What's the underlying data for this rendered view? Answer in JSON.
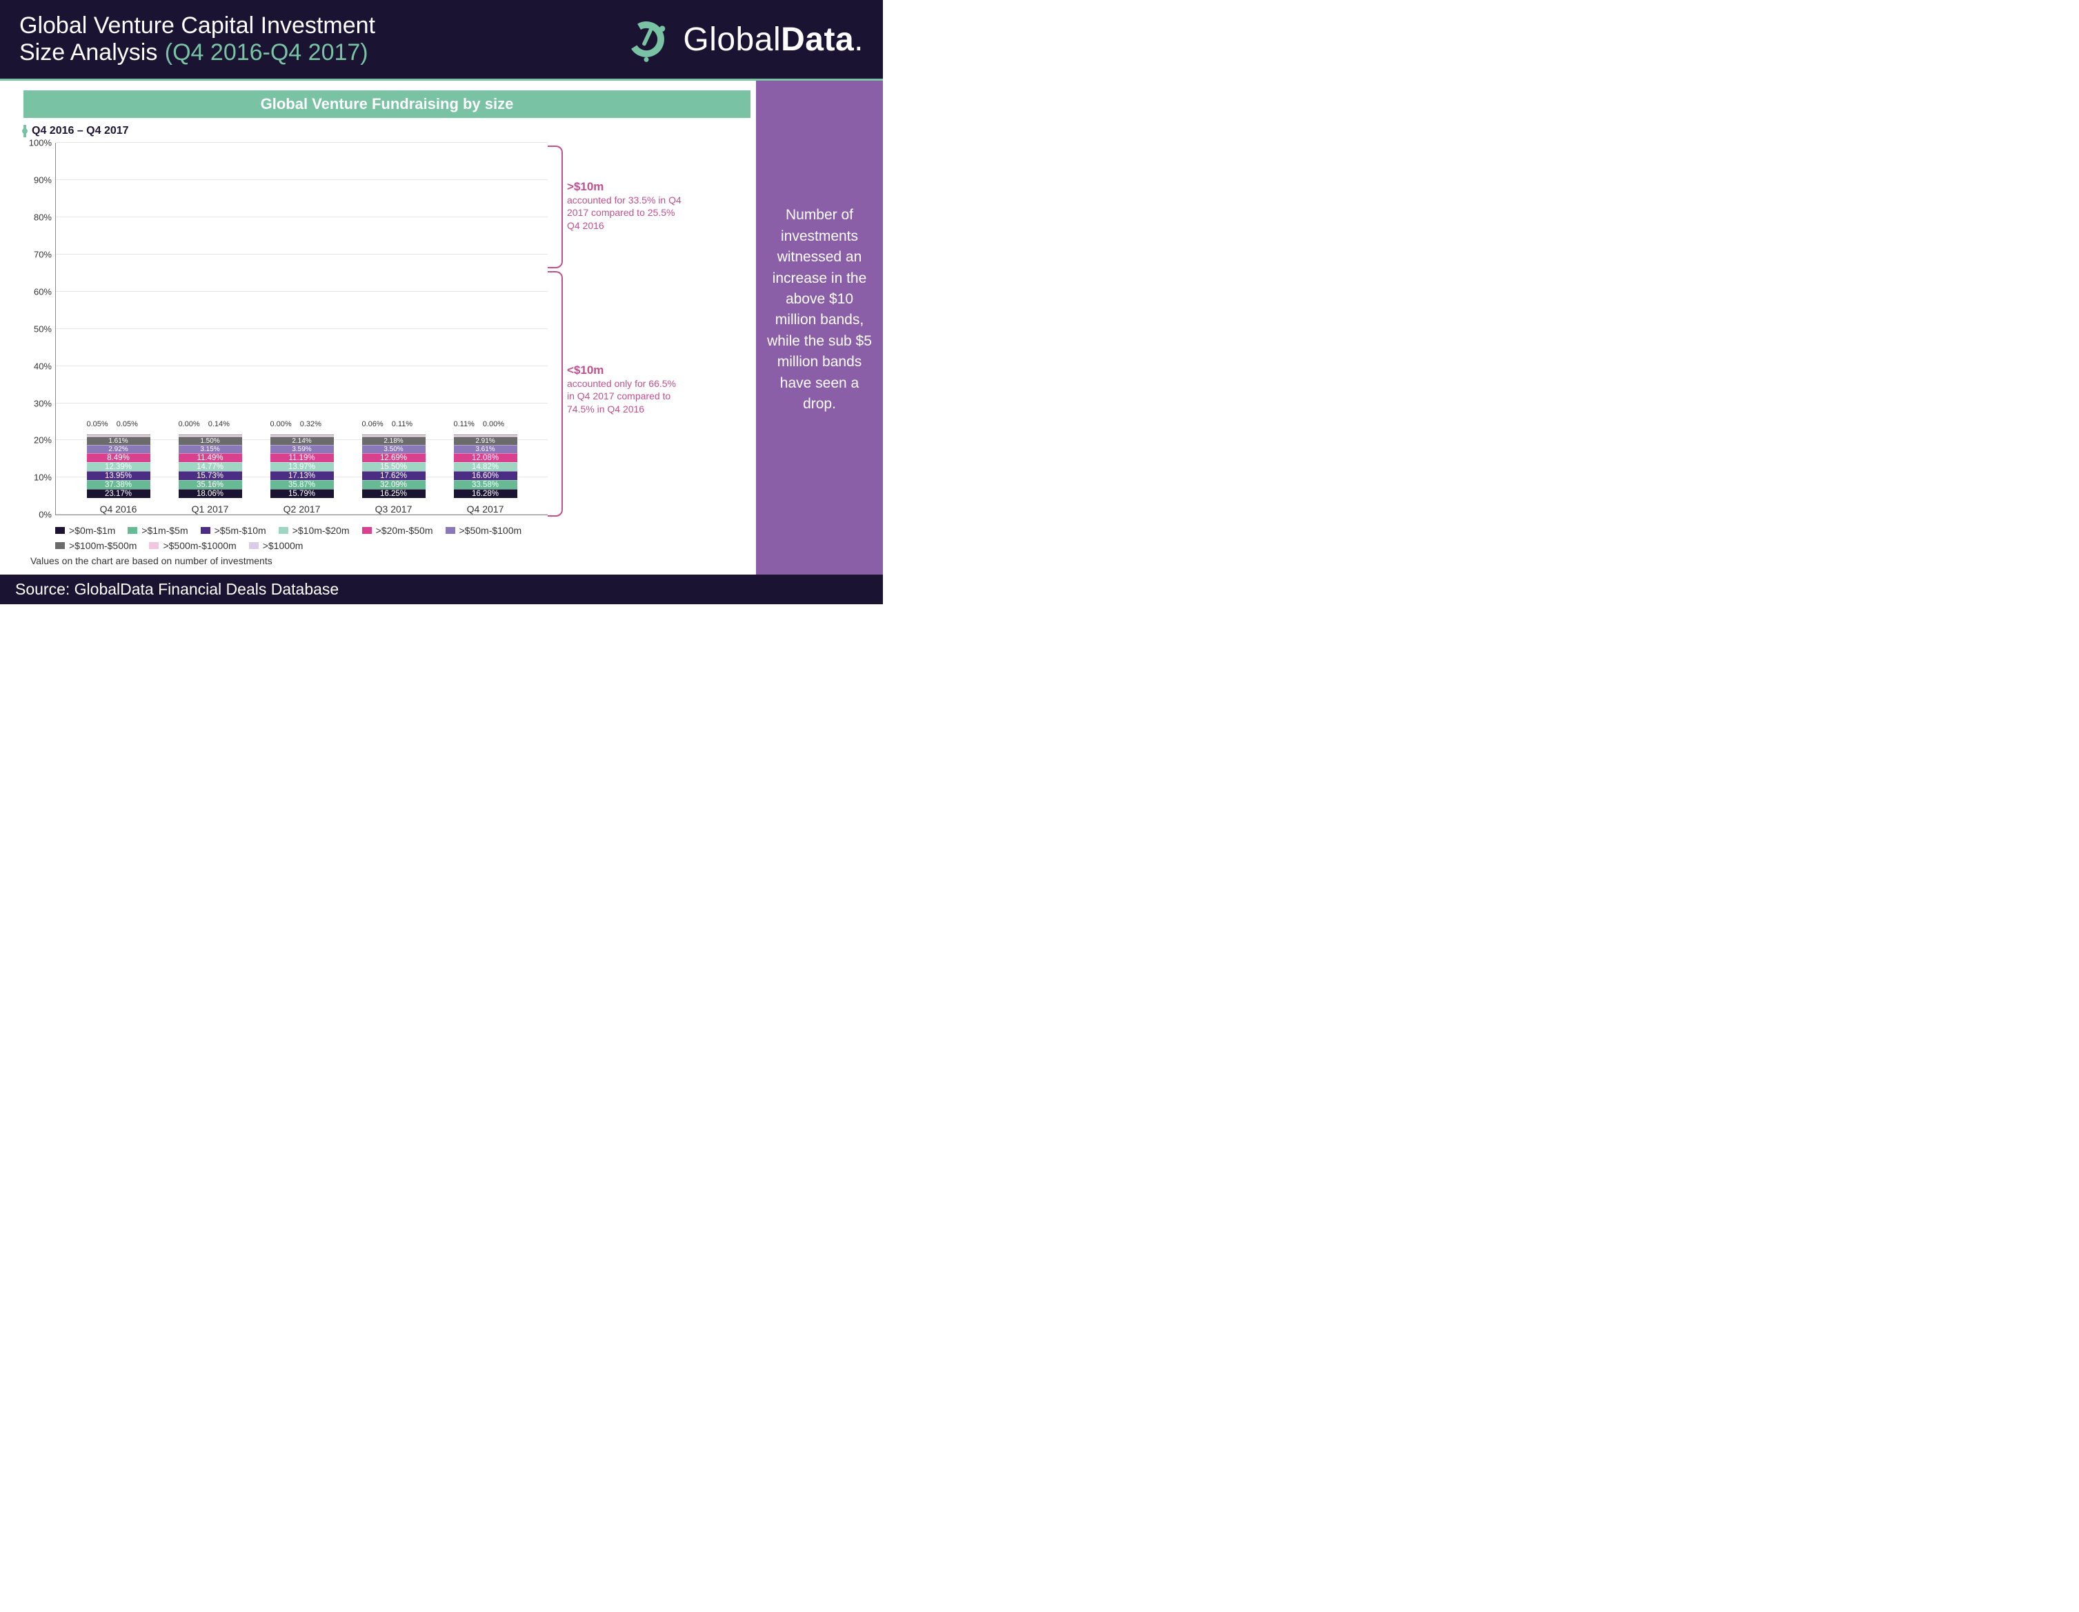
{
  "header": {
    "title_line1": "Global Venture Capital Investment",
    "title_line2": "Size Analysis",
    "title_period": "(Q4 2016-Q4 2017)",
    "brand_a": "Global",
    "brand_b": "Data",
    "brand_dot": "."
  },
  "theme": {
    "header_bg": "#1a1432",
    "accent_green": "#79c2a4",
    "side_bg": "#8a5fa8",
    "annot_pink": "#c1508d"
  },
  "chart": {
    "type": "stacked-bar-100",
    "panel_title": "Global Venture Fundraising by size",
    "sub_range": "Q4 2016 – Q4 2017",
    "note": "Values on the chart are based on number of investments",
    "y_ticks": [
      "0%",
      "10%",
      "20%",
      "30%",
      "40%",
      "50%",
      "60%",
      "70%",
      "80%",
      "90%",
      "100%"
    ],
    "categories": [
      "Q4 2016",
      "Q1 2017",
      "Q2 2017",
      "Q3 2017",
      "Q4 2017"
    ],
    "series": [
      {
        "name": ">$0m-$1m",
        "color": "#1a1432"
      },
      {
        "name": ">$1m-$5m",
        "color": "#66bb94"
      },
      {
        "name": ">$5m-$10m",
        "color": "#4b2e83"
      },
      {
        "name": ">$10m-$20m",
        "color": "#9fd6c3"
      },
      {
        "name": ">$20m-$50m",
        "color": "#d9408e"
      },
      {
        "name": ">$50m-$100m",
        "color": "#8a78b8"
      },
      {
        "name": ">$100m-$500m",
        "color": "#6b6b6b"
      },
      {
        "name": ">$500m-$1000m",
        "color": "#f2c7de"
      },
      {
        "name": ">$1000m",
        "color": "#d9cce8"
      }
    ],
    "data": [
      {
        "values": [
          23.17,
          37.38,
          13.95,
          12.39,
          8.49,
          2.92,
          1.61,
          0.05,
          0.05
        ],
        "labels": [
          "23.17%",
          "37.38%",
          "13.95%",
          "12.39%",
          "8.49%",
          "2.92%",
          "1.61%",
          "",
          ""
        ],
        "top_labels": [
          "0.05%",
          "0.05%"
        ]
      },
      {
        "values": [
          18.06,
          35.16,
          15.73,
          14.77,
          11.49,
          3.15,
          1.5,
          0.0,
          0.14
        ],
        "labels": [
          "18.06%",
          "35.16%",
          "15.73%",
          "14.77%",
          "11.49%",
          "3.15%",
          "1.50%",
          "",
          ""
        ],
        "top_labels": [
          "0.00%",
          "0.14%"
        ]
      },
      {
        "values": [
          15.79,
          35.87,
          17.13,
          13.97,
          11.19,
          3.59,
          2.14,
          0.0,
          0.32
        ],
        "labels": [
          "15.79%",
          "35.87%",
          "17.13%",
          "13.97%",
          "11.19%",
          "3.59%",
          "2.14%",
          "",
          ""
        ],
        "top_labels": [
          "0.00%",
          "0.32%"
        ]
      },
      {
        "values": [
          16.25,
          32.09,
          17.62,
          15.5,
          12.69,
          3.5,
          2.18,
          0.06,
          0.11
        ],
        "labels": [
          "16.25%",
          "32.09%",
          "17.62%",
          "15.50%",
          "12.69%",
          "3.50%",
          "2.18%",
          "",
          ""
        ],
        "top_labels": [
          "0.06%",
          "0.11%"
        ]
      },
      {
        "values": [
          16.28,
          33.58,
          16.6,
          14.82,
          12.08,
          3.61,
          2.91,
          0.11,
          0.0
        ],
        "labels": [
          "16.28%",
          "33.58%",
          "16.60%",
          "14.82%",
          "12.08%",
          "3.61%",
          "2.91%",
          "",
          ""
        ],
        "top_labels": [
          "0.11%",
          "0.00%"
        ]
      }
    ]
  },
  "annotations": {
    "upper": {
      "label": ">$10m",
      "text": "accounted for 33.5% in Q4 2017 compared to 25.5% Q4 2016"
    },
    "lower": {
      "label": "<$10m",
      "text": "accounted only for 66.5% in Q4 2017 compared to 74.5% in Q4 2016"
    }
  },
  "sidebar_text": "Number of investments witnessed an increase in the above $10 million bands, while the sub $5 million bands have seen a drop.",
  "source": "Source: GlobalData Financial Deals Database"
}
